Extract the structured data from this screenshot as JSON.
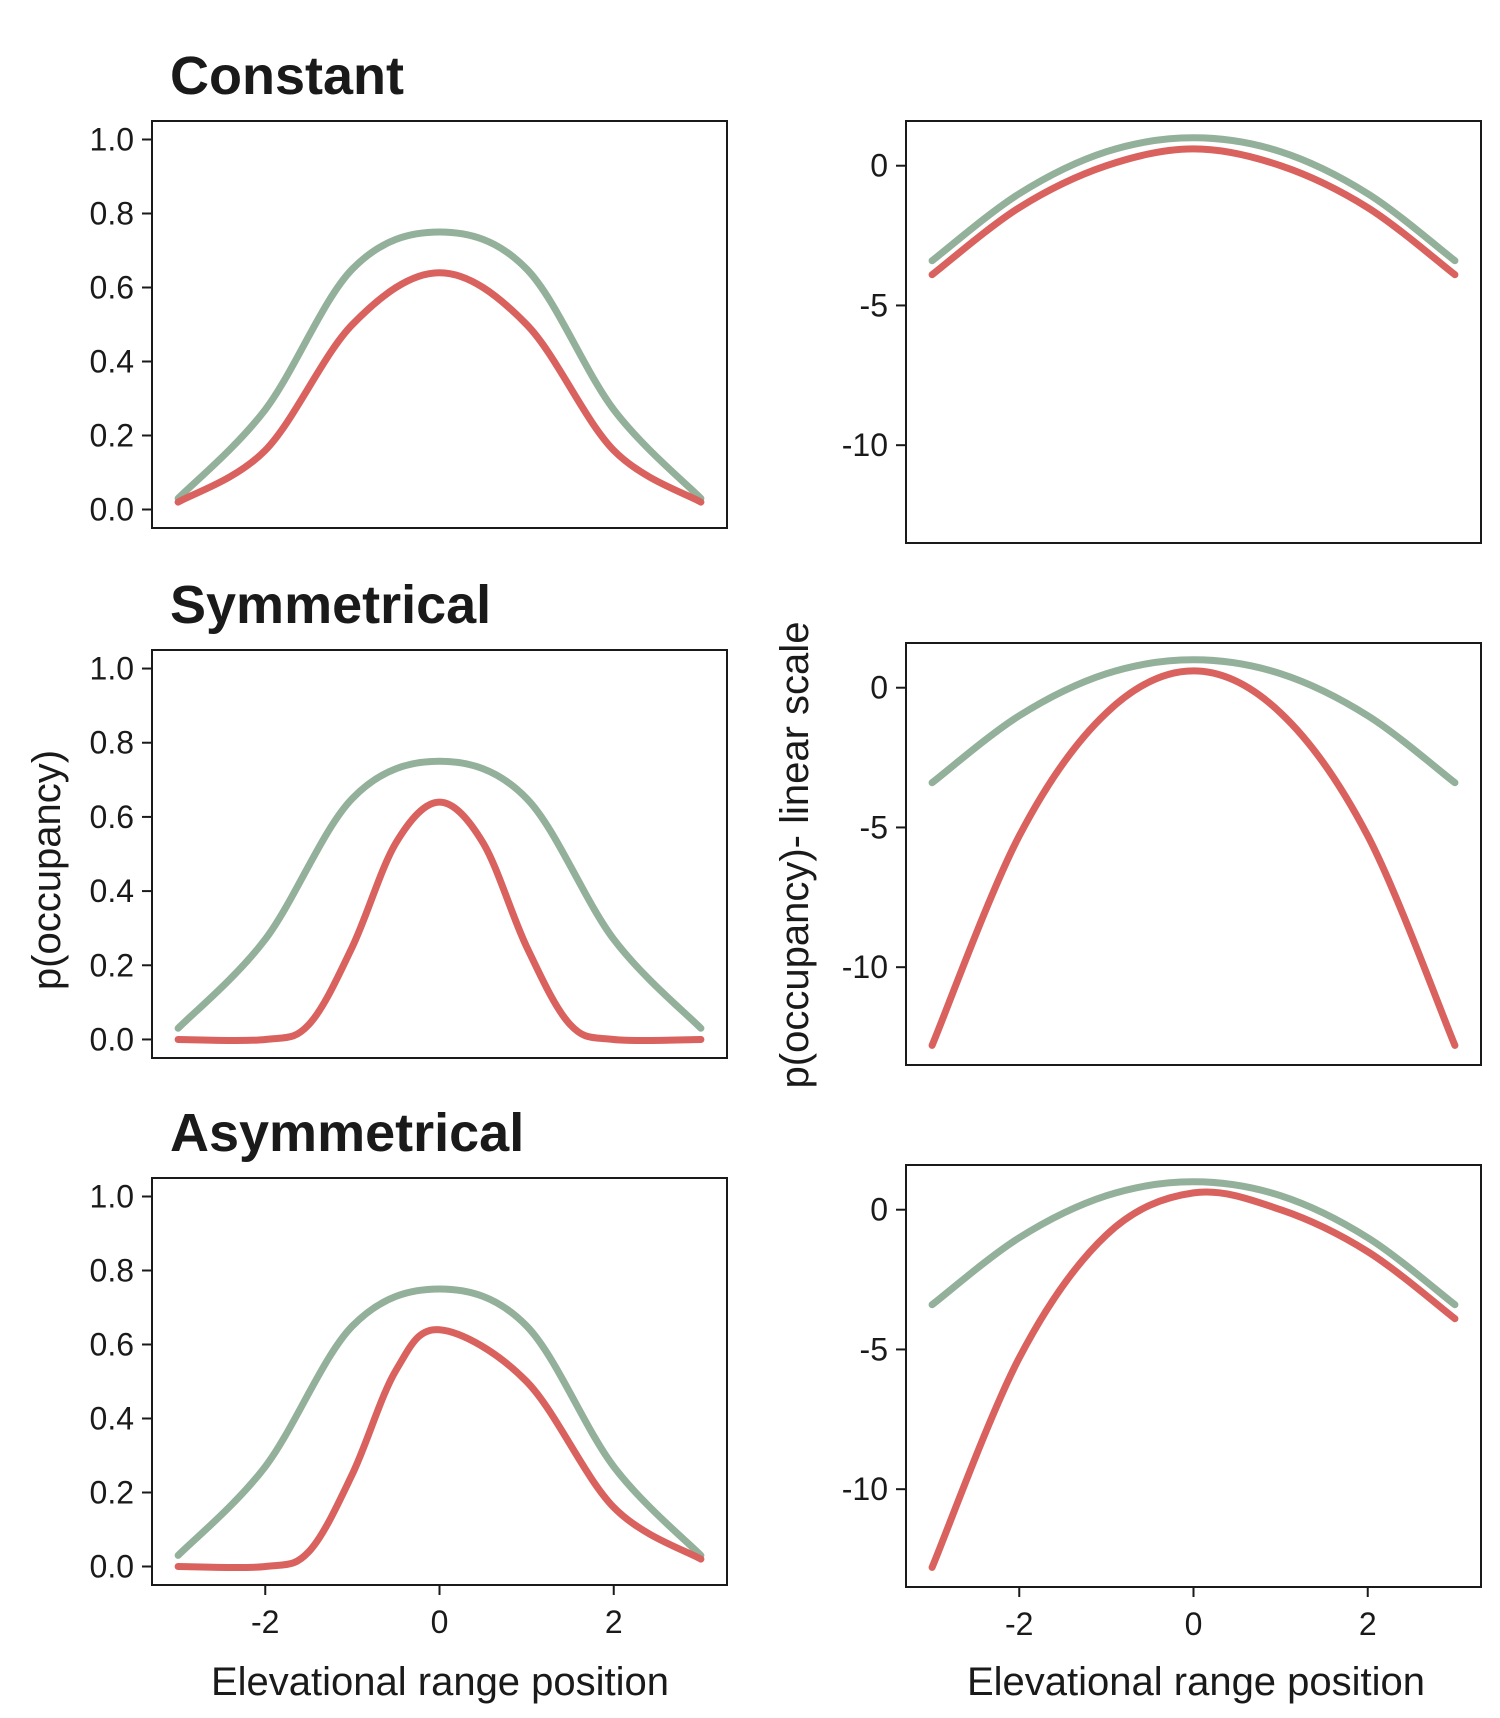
{
  "colors": {
    "green": "#93b09a",
    "red": "#d9625f",
    "frame": "#1a1a1a"
  },
  "labels": {
    "y_left": "p(occupancy)",
    "y_right": "p(occupancy)- linear scale",
    "x_bottom_left": "Elevational range position",
    "x_bottom_right": "Elevational range position"
  },
  "chart_data": [
    {
      "id": "constant-prob",
      "type": "line",
      "title": "Constant",
      "xlim": [
        -3.3,
        3.3
      ],
      "ylim": [
        -0.05,
        1.05
      ],
      "yticks": [
        0,
        0.2,
        0.4,
        0.6,
        0.8,
        1.0
      ],
      "ytick_labels": [
        "0.0",
        "0.2",
        "0.4",
        "0.6",
        "0.8",
        "1.0"
      ],
      "xticks": [],
      "xtick_labels": [],
      "series": [
        {
          "color": "green",
          "x": [
            -3,
            -2,
            -1,
            0,
            1,
            2,
            3
          ],
          "y": [
            0.03,
            0.27,
            0.65,
            0.75,
            0.65,
            0.27,
            0.03
          ]
        },
        {
          "color": "red",
          "x": [
            -3,
            -2,
            -1,
            0,
            1,
            2,
            3
          ],
          "y": [
            0.02,
            0.16,
            0.5,
            0.64,
            0.5,
            0.16,
            0.02
          ]
        }
      ]
    },
    {
      "id": "constant-linear",
      "type": "line",
      "title": "",
      "xlim": [
        -3.3,
        3.3
      ],
      "ylim": [
        -13.5,
        1.6
      ],
      "yticks": [
        -10,
        -5,
        0
      ],
      "ytick_labels": [
        "-10",
        "-5",
        "0"
      ],
      "xticks": [],
      "xtick_labels": [],
      "series": [
        {
          "color": "green",
          "x": [
            -3,
            -2,
            -1,
            0,
            1,
            2,
            3
          ],
          "y": [
            -3.4,
            -1.0,
            0.5,
            1.0,
            0.5,
            -1.0,
            -3.4
          ]
        },
        {
          "color": "red",
          "x": [
            -3,
            -2,
            -1,
            0,
            1,
            2,
            3
          ],
          "y": [
            -3.9,
            -1.5,
            0.0,
            0.6,
            0.0,
            -1.5,
            -3.9
          ]
        }
      ]
    },
    {
      "id": "symmetrical-prob",
      "type": "line",
      "title": "Symmetrical",
      "xlim": [
        -3.3,
        3.3
      ],
      "ylim": [
        -0.05,
        1.05
      ],
      "yticks": [
        0,
        0.2,
        0.4,
        0.6,
        0.8,
        1.0
      ],
      "ytick_labels": [
        "0.0",
        "0.2",
        "0.4",
        "0.6",
        "0.8",
        "1.0"
      ],
      "xticks": [],
      "xtick_labels": [],
      "series": [
        {
          "color": "green",
          "x": [
            -3,
            -2,
            -1,
            0,
            1,
            2,
            3
          ],
          "y": [
            0.03,
            0.27,
            0.65,
            0.75,
            0.65,
            0.27,
            0.03
          ]
        },
        {
          "color": "red",
          "x": [
            -3,
            -2,
            -1.5,
            -1,
            -0.5,
            0,
            0.5,
            1,
            1.5,
            2,
            3
          ],
          "y": [
            0.0,
            0.0,
            0.04,
            0.25,
            0.53,
            0.64,
            0.53,
            0.25,
            0.04,
            0.0,
            0.0
          ]
        }
      ]
    },
    {
      "id": "symmetrical-linear",
      "type": "line",
      "title": "",
      "xlim": [
        -3.3,
        3.3
      ],
      "ylim": [
        -13.5,
        1.6
      ],
      "yticks": [
        -10,
        -5,
        0
      ],
      "ytick_labels": [
        "-10",
        "-5",
        "0"
      ],
      "xticks": [],
      "xtick_labels": [],
      "series": [
        {
          "color": "green",
          "x": [
            -3,
            -2,
            -1,
            0,
            1,
            2,
            3
          ],
          "y": [
            -3.4,
            -1.0,
            0.5,
            1.0,
            0.5,
            -1.0,
            -3.4
          ]
        },
        {
          "color": "red",
          "x": [
            -3,
            -2,
            -1,
            0,
            1,
            2,
            3
          ],
          "y": [
            -12.8,
            -5.3,
            -0.9,
            0.6,
            -0.9,
            -5.3,
            -12.8
          ]
        }
      ]
    },
    {
      "id": "asymmetrical-prob",
      "type": "line",
      "title": "Asymmetrical",
      "xlim": [
        -3.3,
        3.3
      ],
      "ylim": [
        -0.05,
        1.05
      ],
      "yticks": [
        0,
        0.2,
        0.4,
        0.6,
        0.8,
        1.0
      ],
      "ytick_labels": [
        "0.0",
        "0.2",
        "0.4",
        "0.6",
        "0.8",
        "1.0"
      ],
      "xticks": [
        -2,
        0,
        2
      ],
      "xtick_labels": [
        "-2",
        "0",
        "2"
      ],
      "series": [
        {
          "color": "green",
          "x": [
            -3,
            -2,
            -1,
            0,
            1,
            2,
            3
          ],
          "y": [
            0.03,
            0.27,
            0.65,
            0.75,
            0.65,
            0.27,
            0.03
          ]
        },
        {
          "color": "red",
          "x": [
            -3,
            -2,
            -1.5,
            -1,
            -0.5,
            0,
            1,
            2,
            3
          ],
          "y": [
            0.0,
            0.0,
            0.04,
            0.25,
            0.53,
            0.64,
            0.5,
            0.16,
            0.02
          ]
        }
      ]
    },
    {
      "id": "asymmetrical-linear",
      "type": "line",
      "title": "",
      "xlim": [
        -3.3,
        3.3
      ],
      "ylim": [
        -13.5,
        1.6
      ],
      "yticks": [
        -10,
        -5,
        0
      ],
      "ytick_labels": [
        "-10",
        "-5",
        "0"
      ],
      "xticks": [
        -2,
        0,
        2
      ],
      "xtick_labels": [
        "-2",
        "0",
        "2"
      ],
      "series": [
        {
          "color": "green",
          "x": [
            -3,
            -2,
            -1,
            0,
            1,
            2,
            3
          ],
          "y": [
            -3.4,
            -1.0,
            0.5,
            1.0,
            0.5,
            -1.0,
            -3.4
          ]
        },
        {
          "color": "red",
          "x": [
            -3,
            -2,
            -1,
            0,
            1,
            2,
            3
          ],
          "y": [
            -12.8,
            -5.3,
            -0.9,
            0.6,
            0.0,
            -1.5,
            -3.9
          ]
        }
      ]
    }
  ]
}
